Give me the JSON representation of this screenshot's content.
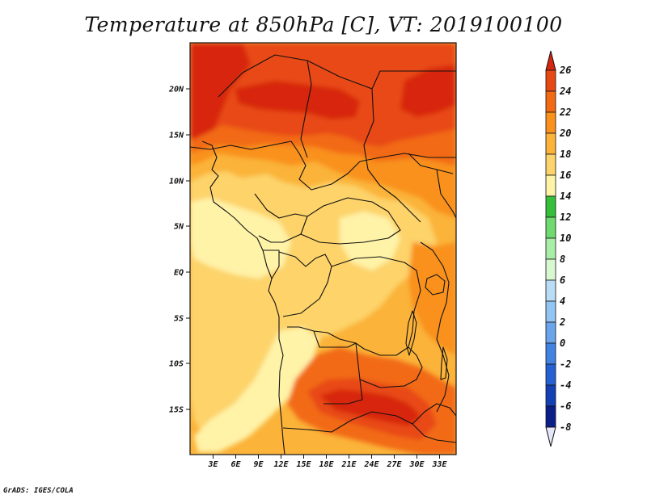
{
  "title": "Temperature at 850hPa [C], VT: 2019100100",
  "credit": "GrADS: IGES/COLA",
  "map": {
    "lon_ticks": [
      "3E",
      "6E",
      "9E",
      "12E",
      "15E",
      "18E",
      "21E",
      "24E",
      "27E",
      "30E",
      "33E"
    ],
    "lat_ticks": [
      "20N",
      "15N",
      "10N",
      "5N",
      "EQ",
      "5S",
      "10S",
      "15S"
    ]
  },
  "colorbar": {
    "levels": [
      "26",
      "24",
      "22",
      "20",
      "18",
      "16",
      "14",
      "12",
      "10",
      "8",
      "6",
      "4",
      "2",
      "0",
      "-2",
      "-4",
      "-6",
      "-8"
    ],
    "colors": [
      "#d7260f",
      "#e84812",
      "#f26b14",
      "#f9911c",
      "#fbb33a",
      "#fdd36b",
      "#fff3a8",
      "#36bf3b",
      "#6fdb6f",
      "#a9eea6",
      "#d8f8d2",
      "#b9ddf5",
      "#93c5f2",
      "#6aa5ec",
      "#4283e2",
      "#2560d4",
      "#1440b6",
      "#0a1f8a",
      "#05105a",
      "#e6e6fa"
    ]
  },
  "colors": {
    "t16": "#fdd36b",
    "t18": "#fbb33a",
    "t20": "#f9911c",
    "t22": "#f26b14",
    "t24": "#e84812",
    "t26": "#d7260f",
    "t14": "#fff3a8",
    "border": "#111111"
  }
}
